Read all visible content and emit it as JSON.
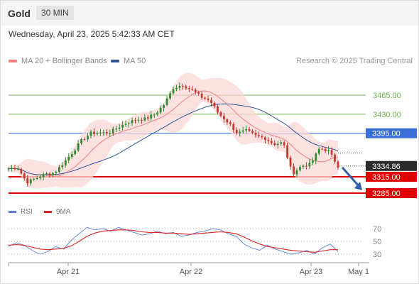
{
  "header": {
    "symbol": "Gold",
    "timeframe": "30 MIN"
  },
  "datetime": "Wednesday, April 23, 2025 5:42:33 AM CET",
  "legend": {
    "items": [
      {
        "label": "MA 20 + Bollinger Bands",
        "color": "#f08080"
      },
      {
        "label": "MA 50",
        "color": "#2f5597"
      }
    ],
    "credit": "Research © 2025 Trading Central"
  },
  "rsi_legend": [
    {
      "label": "RSI",
      "color": "#5b7fd6"
    },
    {
      "label": "9MA",
      "color": "#e02020"
    }
  ],
  "colors": {
    "bull": "#2e8b2e",
    "bear": "#c0392b",
    "support": "#e00000",
    "resistance": "#3b6fd6",
    "target": "#6fb04a",
    "arrow": "#2f5fa8"
  },
  "chart_data": [
    {
      "type": "line",
      "title": "Gold",
      "timeframe": "30 MIN",
      "price_levels": [
        {
          "value": 3465.0,
          "label": "3465.00",
          "kind": "target"
        },
        {
          "value": 3430.0,
          "label": "3430.00",
          "kind": "target"
        },
        {
          "value": 3395.0,
          "label": "3395.00",
          "kind": "resistance"
        },
        {
          "value": 3334.86,
          "label": "3334.86",
          "kind": "last"
        },
        {
          "value": 3315.0,
          "label": "3315.00",
          "kind": "support"
        },
        {
          "value": 3285.0,
          "label": "3285.00",
          "kind": "support"
        }
      ],
      "x_ticks": [
        "Apr 21",
        "Apr 22",
        "Apr 23",
        "May 1"
      ],
      "ylim": [
        3270,
        3500
      ],
      "close_path": [
        {
          "x": "Apr 20 22:00",
          "y": 3330
        },
        {
          "x": "Apr 21 00:00",
          "y": 3332
        },
        {
          "x": "Apr 21 01:00",
          "y": 3305
        },
        {
          "x": "Apr 21 02:00",
          "y": 3312
        },
        {
          "x": "Apr 21 04:00",
          "y": 3320
        },
        {
          "x": "Apr 21 06:00",
          "y": 3322
        },
        {
          "x": "Apr 21 08:00",
          "y": 3340
        },
        {
          "x": "Apr 21 10:00",
          "y": 3360
        },
        {
          "x": "Apr 21 11:00",
          "y": 3382
        },
        {
          "x": "Apr 21 13:00",
          "y": 3395
        },
        {
          "x": "Apr 21 15:00",
          "y": 3396
        },
        {
          "x": "Apr 21 17:00",
          "y": 3396
        },
        {
          "x": "Apr 21 19:00",
          "y": 3406
        },
        {
          "x": "Apr 21 21:00",
          "y": 3415
        },
        {
          "x": "Apr 21 23:00",
          "y": 3420
        },
        {
          "x": "Apr 22 01:00",
          "y": 3422
        },
        {
          "x": "Apr 22 02:00",
          "y": 3430
        },
        {
          "x": "Apr 22 04:00",
          "y": 3448
        },
        {
          "x": "Apr 22 05:00",
          "y": 3478
        },
        {
          "x": "Apr 22 07:00",
          "y": 3484
        },
        {
          "x": "Apr 22 08:00",
          "y": 3475
        },
        {
          "x": "Apr 22 10:00",
          "y": 3462
        },
        {
          "x": "Apr 22 12:00",
          "y": 3455
        },
        {
          "x": "Apr 22 14:00",
          "y": 3430
        },
        {
          "x": "Apr 22 16:00",
          "y": 3415
        },
        {
          "x": "Apr 22 17:00",
          "y": 3395
        },
        {
          "x": "Apr 22 18:00",
          "y": 3400
        },
        {
          "x": "Apr 22 19:00",
          "y": 3390
        },
        {
          "x": "Apr 22 20:00",
          "y": 3386
        },
        {
          "x": "Apr 22 21:00",
          "y": 3375
        },
        {
          "x": "Apr 22 22:00",
          "y": 3378
        },
        {
          "x": "Apr 23 00:00",
          "y": 3320
        },
        {
          "x": "Apr 23 01:00",
          "y": 3335
        },
        {
          "x": "Apr 23 02:00",
          "y": 3338
        },
        {
          "x": "Apr 23 03:00",
          "y": 3368
        },
        {
          "x": "Apr 23 04:00",
          "y": 3362
        },
        {
          "x": "Apr 23 05:00",
          "y": 3335
        }
      ],
      "series": [
        {
          "name": "MA 20 + Bollinger Bands",
          "color": "#f08080"
        },
        {
          "name": "MA 50",
          "color": "#2f5597"
        }
      ],
      "forecast_arrow": {
        "from": 3334.86,
        "to": 3285.0,
        "direction": "down"
      }
    },
    {
      "type": "line",
      "title": "RSI",
      "levels": [
        70,
        50,
        30
      ],
      "ylim": [
        20,
        80
      ],
      "series": [
        {
          "name": "RSI",
          "color": "#5b7fd6",
          "values": [
            42,
            48,
            44,
            36,
            30,
            34,
            42,
            38,
            52,
            62,
            72,
            68,
            70,
            66,
            72,
            68,
            64,
            60,
            62,
            66,
            62,
            64,
            58,
            60,
            64,
            66,
            70,
            68,
            62,
            58,
            46,
            40,
            36,
            44,
            38,
            34,
            30,
            32,
            36,
            30,
            40,
            46,
            34
          ]
        },
        {
          "name": "9MA",
          "color": "#e02020",
          "values": [
            44,
            45,
            44,
            41,
            38,
            37,
            38,
            39,
            43,
            50,
            58,
            63,
            66,
            67,
            68,
            68,
            67,
            65,
            64,
            64,
            63,
            63,
            62,
            61,
            62,
            63,
            64,
            65,
            64,
            62,
            57,
            51,
            46,
            42,
            40,
            38,
            36,
            35,
            34,
            33,
            35,
            37,
            37
          ]
        }
      ]
    }
  ]
}
